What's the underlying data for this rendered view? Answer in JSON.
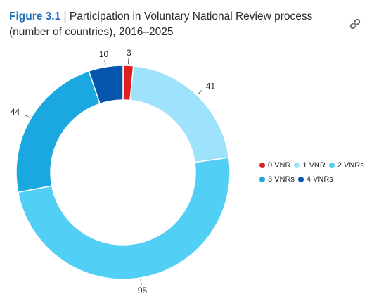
{
  "header": {
    "figure_label": "Figure 3.1",
    "separator": "|",
    "title": "Participation in Voluntary National Review process (number of countries), 2016–2025"
  },
  "icons": {
    "link": "link-icon"
  },
  "chart_data": {
    "type": "pie",
    "variant": "donut",
    "title": "Participation in Voluntary National Review process (number of countries), 2016–2025",
    "categories": [
      "0 VNR",
      "1 VNR",
      "2 VNRs",
      "3 VNRs",
      "4 VNRs"
    ],
    "values": [
      3,
      41,
      95,
      44,
      10
    ],
    "colors": [
      "#e02020",
      "#9ee3fb",
      "#52cff4",
      "#1ba7e0",
      "#0456ad"
    ],
    "data_labels": [
      "3",
      "41",
      "95",
      "44",
      "10"
    ],
    "legend_position": "right",
    "start_angle": "top, clockwise"
  },
  "legend": {
    "items": [
      {
        "label": "0 VNR",
        "color": "#e02020"
      },
      {
        "label": "1 VNR",
        "color": "#9ee3fb"
      },
      {
        "label": "2 VNRs",
        "color": "#52cff4"
      },
      {
        "label": "3 VNRs",
        "color": "#1ba7e0"
      },
      {
        "label": "4 VNRs",
        "color": "#0456ad"
      }
    ]
  }
}
